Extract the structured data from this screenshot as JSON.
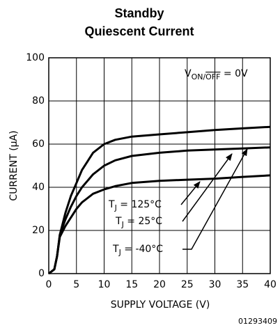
{
  "chart_data": {
    "type": "line",
    "title": [
      "Standby",
      "Quiescent Current"
    ],
    "x_label": "SUPPLY VOLTAGE (V)",
    "y_label": "CURRENT (μA)",
    "figure_id": "01293409",
    "annotation": {
      "main": "V",
      "sub": "ON/",
      "sub_over": "OFF",
      "rest": " = 0V"
    },
    "x": [
      0,
      1,
      1.5,
      2,
      3,
      4,
      5,
      6,
      7,
      8,
      10,
      12,
      15,
      20,
      25,
      30,
      35,
      40
    ],
    "series": [
      {
        "color": "#000000",
        "label": {
          "main": "T",
          "sub": "J",
          "rest": " = 125°C"
        },
        "values": [
          0,
          2,
          8,
          18,
          28,
          36,
          42,
          48,
          52,
          56,
          60,
          62,
          63.5,
          64.5,
          65.5,
          66.5,
          67.3,
          68
        ]
      },
      {
        "color": "#000000",
        "label": {
          "main": "T",
          "sub": "J",
          "rest": " = 25°C"
        },
        "values": [
          0,
          2,
          8,
          18,
          25,
          31,
          36,
          40,
          43,
          46,
          50,
          52.5,
          54.5,
          56,
          57,
          57.5,
          58,
          58.5
        ]
      },
      {
        "color": "#000000",
        "label": {
          "main": "T",
          "sub": "J",
          "rest": " = -40°C"
        },
        "values": [
          0,
          2,
          8,
          17,
          22,
          26,
          30,
          33,
          35,
          37,
          39,
          40.5,
          42,
          43,
          43.5,
          44,
          44.8,
          45.5
        ]
      }
    ],
    "xlim": [
      0,
      40
    ],
    "xticks": [
      0,
      5,
      10,
      15,
      20,
      25,
      30,
      35,
      40
    ],
    "ylim": [
      0,
      100
    ],
    "yticks": [
      0,
      20,
      40,
      60,
      80,
      100
    ],
    "grid": true
  }
}
